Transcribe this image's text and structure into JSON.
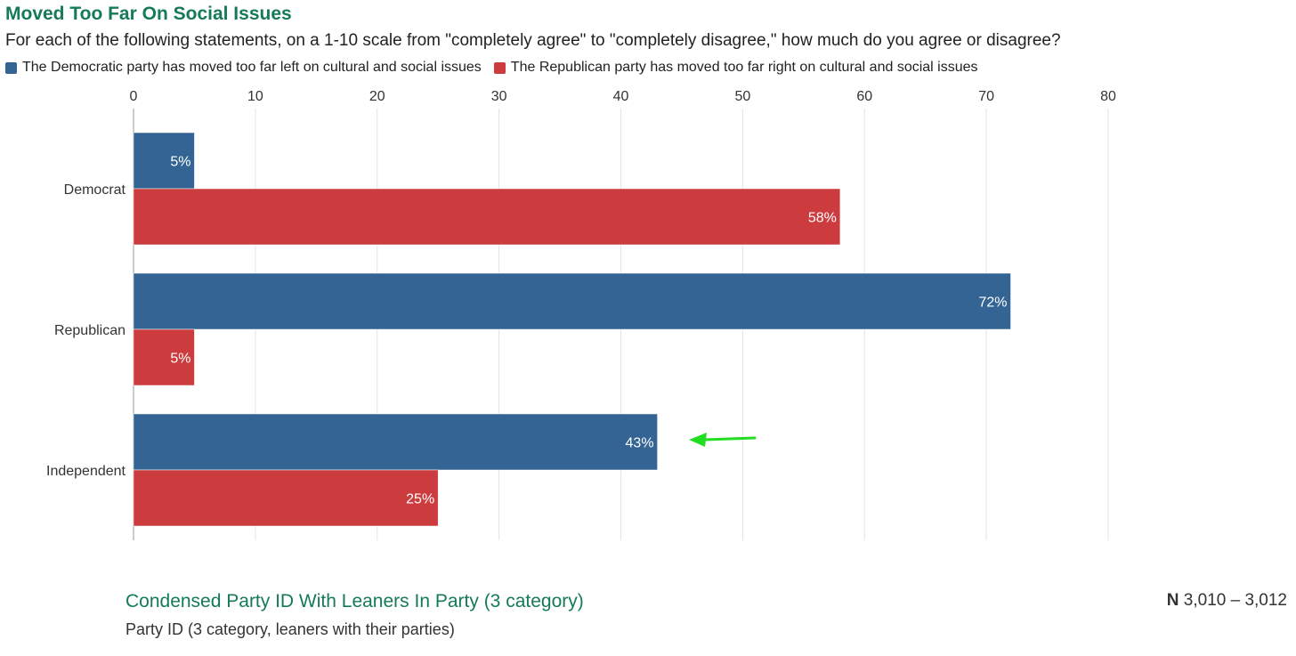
{
  "chart_data": {
    "type": "bar",
    "orientation": "horizontal",
    "title": "Moved Too Far On Social Issues",
    "subtitle": "For each of the following statements, on a 1-10 scale from \"completely agree\" to \"completely disagree,\" how much do you agree or disagree?",
    "categories": [
      "Democrat",
      "Republican",
      "Independent"
    ],
    "series": [
      {
        "name": "The Democratic party has moved too far left on cultural and social issues",
        "color": "#336494",
        "values": [
          5,
          72,
          43
        ],
        "labels": [
          "5%",
          "72%",
          "43%"
        ]
      },
      {
        "name": "The Republican party has moved too far right on cultural and social issues",
        "color": "#cc3c3e",
        "values": [
          58,
          5,
          25
        ],
        "labels": [
          "58%",
          "5%",
          "25%"
        ]
      }
    ],
    "xlim": [
      0,
      80
    ],
    "xticks": [
      0,
      10,
      20,
      30,
      40,
      50,
      60,
      70,
      80
    ],
    "grid": true,
    "legend_position": "top-left",
    "annotation": {
      "type": "arrow",
      "color": "#22dd22",
      "points_to": "Independent 43%"
    }
  },
  "footer": {
    "title": "Condensed Party ID With Leaners In Party (3 category)",
    "subtitle": "Party ID (3 category, leaners with their parties)",
    "n_label": "N",
    "n_value": "3,010 – 3,012"
  }
}
